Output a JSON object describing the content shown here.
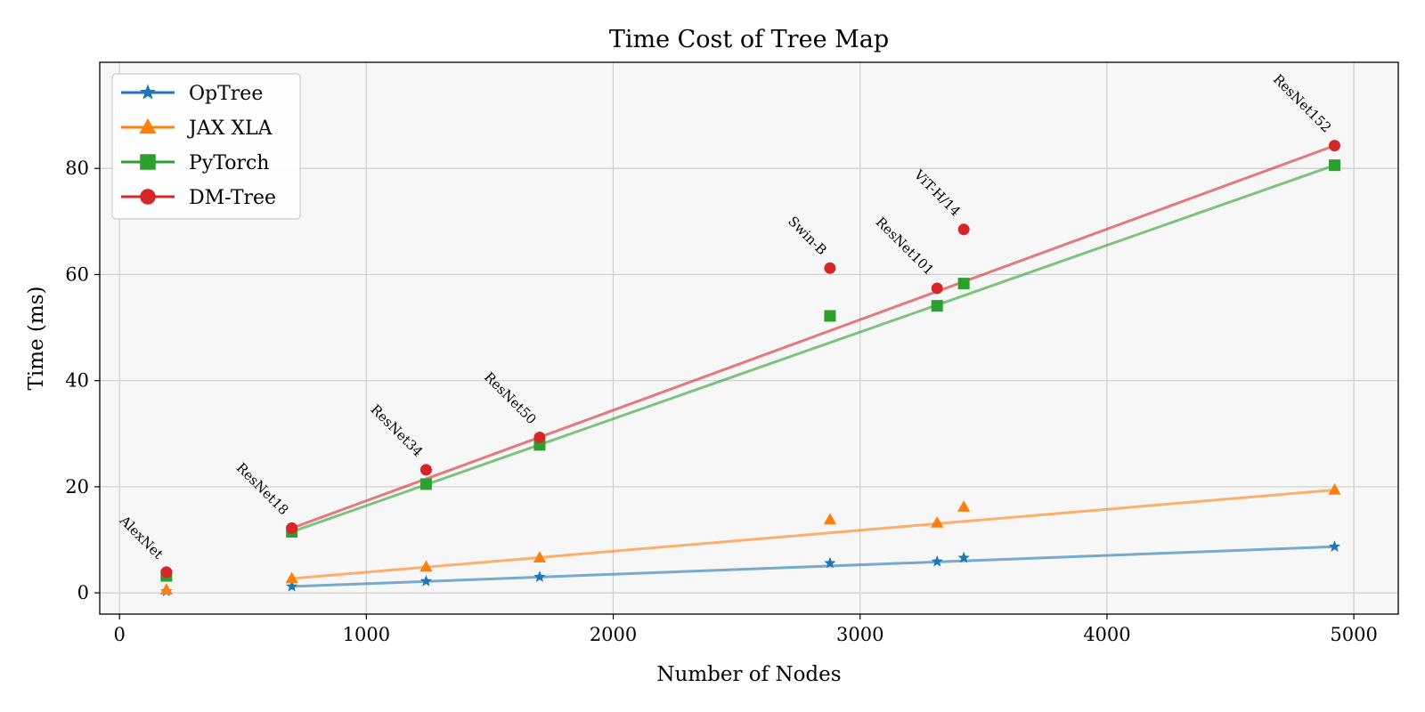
{
  "chart_data": {
    "type": "line",
    "title": "Time Cost of Tree Map",
    "xlabel": "Number of Nodes",
    "ylabel": "Time (ms)",
    "xlim": [
      -80,
      5180
    ],
    "ylim": [
      -4,
      100
    ],
    "xticks": [
      0,
      1000,
      2000,
      3000,
      4000,
      5000
    ],
    "yticks": [
      0,
      20,
      40,
      60,
      80
    ],
    "grid": true,
    "legend_position": "top-left",
    "colors": {
      "OpTree": "#1f77b4",
      "JAX XLA": "#ff7f0e",
      "PyTorch": "#2ca02c",
      "DM-Tree": "#d62728"
    },
    "markers": {
      "OpTree": "star",
      "JAX XLA": "triangle",
      "PyTorch": "square",
      "DM-Tree": "circle"
    },
    "models": [
      {
        "name": "AlexNet",
        "x": 190
      },
      {
        "name": "ResNet18",
        "x": 698
      },
      {
        "name": "ResNet34",
        "x": 1242
      },
      {
        "name": "ResNet50",
        "x": 1702
      },
      {
        "name": "Swin-B",
        "x": 2878
      },
      {
        "name": "ResNet101",
        "x": 3312
      },
      {
        "name": "ViT-H/14",
        "x": 3420
      },
      {
        "name": "ResNet152",
        "x": 4922
      }
    ],
    "series": [
      {
        "name": "OpTree",
        "values": [
          0.3,
          1.2,
          2.2,
          3.0,
          5.6,
          5.9,
          6.6,
          8.7
        ],
        "fit": [
          [
            698,
            1.2
          ],
          [
            4922,
            8.7
          ]
        ]
      },
      {
        "name": "JAX XLA",
        "values": [
          0.6,
          2.7,
          4.9,
          6.6,
          13.8,
          13.2,
          16.2,
          19.4
        ],
        "fit": [
          [
            698,
            2.7
          ],
          [
            4922,
            19.4
          ]
        ]
      },
      {
        "name": "PyTorch",
        "values": [
          3.2,
          11.5,
          20.5,
          27.9,
          52.2,
          54.1,
          58.3,
          80.6
        ],
        "fit": [
          [
            698,
            11.5
          ],
          [
            4922,
            80.6
          ]
        ]
      },
      {
        "name": "DM-Tree",
        "values": [
          3.9,
          12.2,
          23.2,
          29.3,
          61.2,
          57.4,
          68.5,
          84.3
        ],
        "fit": [
          [
            698,
            12.2
          ],
          [
            4922,
            84.3
          ]
        ]
      }
    ]
  }
}
